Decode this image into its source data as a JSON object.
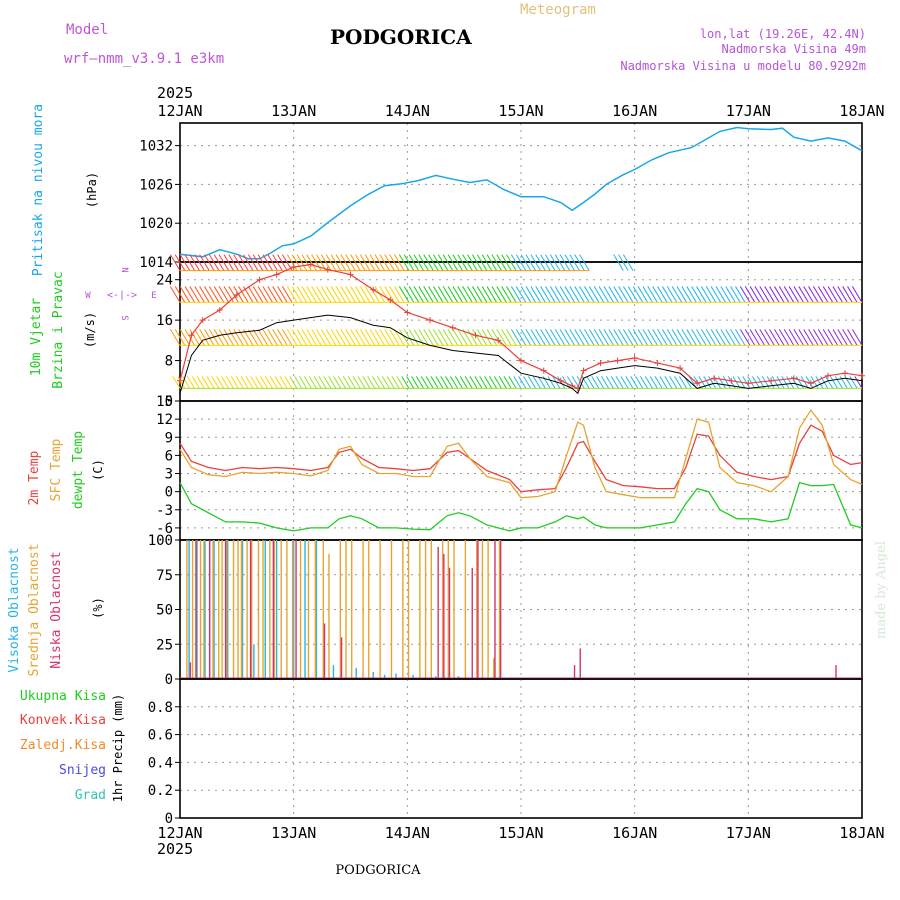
{
  "colors": {
    "model": "#bf55d6",
    "title": "#000000",
    "meteogram": "#e5c07a",
    "info": "#b455d6",
    "pressure": "#1aa7e8",
    "wind_label": "#1fcc1f",
    "compass": "#b455d6",
    "temp2m": "#e8413c",
    "sfc": "#e6a532",
    "dewpt": "#1fcc1f",
    "cloud_high": "#27b5e6",
    "cloud_mid": "#e6a532",
    "cloud_low": "#d6336e",
    "precip_total": "#1fcc1f",
    "precip_conv": "#e8413c",
    "precip_frz": "#f08c2a",
    "precip_snow": "#4b4bd6",
    "precip_hail": "#2ec4b6",
    "watermark": "#d7e8d7",
    "speed": "#000000",
    "gust": "#e8413c"
  },
  "header": {
    "model_label": "Model",
    "model_name": "wrf—nmm_v3.9.1  e3km",
    "title": "PODGORICA",
    "meteogram_label": "Meteogram",
    "coords": "lon,lat (19.26E, 42.4N)",
    "altitude": "Nadmorska Visina 49m",
    "model_altitude": "Nadmorska Visina u modelu 80.9292m"
  },
  "time_axis": {
    "year": "2025",
    "labels": [
      "12JAN",
      "13JAN",
      "14JAN",
      "15JAN",
      "16JAN",
      "17JAN",
      "18JAN"
    ],
    "days": [
      0,
      1,
      2,
      3,
      4,
      5,
      6
    ]
  },
  "footer": {
    "station": "PODGORICA"
  },
  "watermark": "made by Angel",
  "chart_data": [
    {
      "type": "line",
      "id": "pressure",
      "ylabel": "(hPa)",
      "side_label": "Pritisak na nivou mora",
      "ylim": [
        1014,
        1035.5
      ],
      "yticks": [
        1014,
        1020,
        1026,
        1032
      ],
      "x": [
        0,
        0.2,
        0.35,
        0.5,
        0.6,
        0.7,
        0.8,
        0.9,
        1.0,
        1.15,
        1.3,
        1.5,
        1.65,
        1.8,
        1.95,
        2.1,
        2.25,
        2.4,
        2.55,
        2.7,
        2.85,
        3.0,
        3.2,
        3.35,
        3.45,
        3.55,
        3.65,
        3.75,
        3.9,
        4.0,
        4.15,
        4.3,
        4.5,
        4.6,
        4.75,
        4.9,
        5.0,
        5.2,
        5.3,
        5.4,
        5.55,
        5.7,
        5.85,
        6.0
      ],
      "series": [
        {
          "name": "pressure",
          "values": [
            1015.2,
            1014.8,
            1015.9,
            1015.2,
            1014.5,
            1014.5,
            1015.4,
            1016.5,
            1016.8,
            1018.0,
            1020.1,
            1022.7,
            1024.4,
            1025.8,
            1026.1,
            1026.6,
            1027.4,
            1026.8,
            1026.3,
            1026.7,
            1025.2,
            1024.1,
            1024.1,
            1023.2,
            1022.0,
            1023.2,
            1024.5,
            1026.0,
            1027.5,
            1028.3,
            1029.8,
            1030.9,
            1031.7,
            1032.7,
            1034.2,
            1034.8,
            1034.6,
            1034.5,
            1034.7,
            1033.3,
            1032.7,
            1033.2,
            1032.7,
            1031.2
          ]
        }
      ]
    },
    {
      "type": "line",
      "id": "wind",
      "ylabel": "(m/s)",
      "side_label_1": "10m Vjetar",
      "side_label_2": "Brzina i Pravac",
      "compass": {
        "n": "N",
        "s": "S",
        "e": "E",
        "w": "W"
      },
      "ylim": [
        0,
        27.5
      ],
      "yticks": [
        0,
        8,
        16,
        24
      ],
      "x": [
        0,
        0.1,
        0.2,
        0.35,
        0.5,
        0.7,
        0.85,
        1.0,
        1.15,
        1.3,
        1.5,
        1.7,
        1.85,
        2.0,
        2.2,
        2.4,
        2.6,
        2.8,
        3.0,
        3.2,
        3.35,
        3.45,
        3.5,
        3.55,
        3.7,
        3.85,
        4.0,
        4.2,
        4.4,
        4.55,
        4.7,
        4.85,
        5.0,
        5.2,
        5.4,
        5.55,
        5.7,
        5.85,
        6.0
      ],
      "series": [
        {
          "name": "speed",
          "values": [
            1.5,
            9,
            12,
            13,
            13.5,
            14,
            15.5,
            16,
            16.5,
            17,
            16.5,
            15,
            14.5,
            12.5,
            11,
            10,
            9.5,
            9,
            5.5,
            4.5,
            3.5,
            2.5,
            1.5,
            4.5,
            6,
            6.5,
            7,
            6.5,
            5.5,
            2.5,
            3.5,
            3,
            2.5,
            3,
            3.5,
            2.5,
            4,
            4.5,
            4
          ]
        },
        {
          "name": "gust",
          "values": [
            4,
            13,
            16,
            18,
            21,
            24,
            25,
            26.5,
            27,
            26,
            25,
            22,
            20,
            17.5,
            16,
            14.5,
            13,
            12,
            8,
            6,
            4,
            3,
            2.5,
            6,
            7.5,
            8,
            8.5,
            7.5,
            6.5,
            3.5,
            4.5,
            4,
            3.5,
            4,
            4.5,
            3.5,
            5,
            5.5,
            5
          ]
        }
      ]
    },
    {
      "type": "line",
      "id": "temperature",
      "ylabel": "(C)",
      "side_label_1": "2m Temp",
      "side_label_2": "SFC Temp",
      "side_label_3": "dewpt Temp",
      "ylim": [
        -8,
        15
      ],
      "yticks": [
        -6,
        -3,
        0,
        3,
        6,
        9,
        12,
        15
      ],
      "x": [
        0,
        0.1,
        0.25,
        0.4,
        0.55,
        0.7,
        0.85,
        1.0,
        1.15,
        1.3,
        1.4,
        1.5,
        1.6,
        1.75,
        1.9,
        2.05,
        2.2,
        2.35,
        2.45,
        2.55,
        2.7,
        2.9,
        3.0,
        3.15,
        3.3,
        3.4,
        3.5,
        3.55,
        3.65,
        3.75,
        3.9,
        4.05,
        4.2,
        4.35,
        4.45,
        4.55,
        4.65,
        4.75,
        4.9,
        5.05,
        5.2,
        5.35,
        5.45,
        5.55,
        5.65,
        5.75,
        5.9,
        6.0
      ],
      "series": [
        {
          "name": "2m Temp",
          "values": [
            8,
            5,
            4,
            3.5,
            4,
            3.8,
            4,
            3.8,
            3.5,
            4,
            6.5,
            7,
            5.5,
            4,
            3.8,
            3.5,
            3.8,
            6.5,
            6.8,
            5.5,
            3.5,
            2,
            0,
            0.3,
            0.5,
            4,
            8,
            8.3,
            5,
            2,
            1,
            0.8,
            0.5,
            0.5,
            4,
            9.5,
            9.2,
            6,
            3.2,
            2.5,
            2,
            2.5,
            8,
            11,
            10,
            6,
            4.5,
            4.8
          ]
        },
        {
          "name": "SFC Temp",
          "values": [
            7,
            4,
            2.8,
            2.5,
            3.2,
            3,
            3.2,
            3,
            2.6,
            3.5,
            7,
            7.5,
            4.5,
            3,
            3,
            2.5,
            2.5,
            7.5,
            8,
            5.5,
            2.5,
            1.5,
            -1,
            -0.8,
            0,
            6,
            11.5,
            11,
            4,
            0,
            -0.5,
            -1,
            -1,
            -1,
            5.5,
            12,
            11.5,
            4,
            1.5,
            1,
            0,
            2.5,
            10.5,
            13.5,
            11,
            4.5,
            2,
            1.2
          ]
        },
        {
          "name": "dewpt Temp",
          "values": [
            1.5,
            -2,
            -3.5,
            -5,
            -5,
            -5.2,
            -6,
            -6.5,
            -6,
            -6,
            -4.5,
            -4,
            -4.5,
            -6,
            -6,
            -6.2,
            -6.3,
            -4,
            -3.5,
            -4,
            -5.5,
            -6.5,
            -6,
            -6,
            -5,
            -4,
            -4.5,
            -4.2,
            -5.5,
            -6,
            -6,
            -6,
            -5.5,
            -5,
            -2,
            0.5,
            0,
            -3,
            -4.5,
            -4.5,
            -5,
            -4.5,
            1.5,
            1,
            1,
            1.2,
            -5.5,
            -6
          ]
        }
      ]
    },
    {
      "type": "bar",
      "id": "clouds",
      "ylabel": "(%)",
      "side_label_1": "Visoka Oblacnost",
      "side_label_2": "Srednja Oblacnost",
      "side_label_3": "Niska Oblacnost",
      "ylim": [
        0,
        100
      ],
      "yticks": [
        0,
        25,
        50,
        75,
        100
      ],
      "series": [
        {
          "name": "Visoka Oblacnost",
          "x": [
            0.08,
            0.15,
            0.22,
            0.3,
            0.42,
            0.55,
            0.65,
            0.75,
            0.85,
            1.0,
            1.1,
            1.2,
            1.35,
            1.55,
            1.7,
            1.8,
            1.9,
            2.05,
            2.25,
            2.45
          ],
          "values": [
            100,
            100,
            100,
            100,
            100,
            100,
            25,
            100,
            100,
            100,
            100,
            100,
            10,
            8,
            5,
            3,
            4,
            3,
            2,
            2
          ]
        },
        {
          "name": "Srednja Oblacnost",
          "x": [
            0.05,
            0.1,
            0.13,
            0.17,
            0.2,
            0.25,
            0.28,
            0.33,
            0.36,
            0.4,
            0.46,
            0.5,
            0.53,
            0.58,
            0.62,
            0.68,
            0.72,
            0.78,
            0.82,
            0.88,
            0.93,
            0.98,
            1.05,
            1.12,
            1.18,
            1.25,
            1.3,
            1.4,
            1.45,
            1.5,
            1.6,
            1.65,
            1.75,
            1.85,
            1.95,
            2.0,
            2.1,
            2.15,
            2.2,
            2.3,
            2.35,
            2.4,
            2.5,
            2.6,
            2.65,
            2.7,
            2.75,
            2.8
          ],
          "values": [
            100,
            100,
            100,
            100,
            100,
            100,
            100,
            100,
            100,
            100,
            100,
            100,
            100,
            100,
            100,
            100,
            100,
            100,
            100,
            100,
            100,
            100,
            100,
            100,
            100,
            100,
            90,
            100,
            100,
            100,
            100,
            100,
            100,
            100,
            100,
            100,
            100,
            100,
            100,
            100,
            100,
            100,
            100,
            100,
            100,
            100,
            15,
            100
          ]
        },
        {
          "name": "Niska Oblacnost",
          "x": [
            0.07,
            0.12,
            0.24,
            0.38,
            0.6,
            0.8,
            1.0,
            1.25,
            1.4,
            2.25,
            2.3,
            2.35,
            2.55,
            2.6,
            2.75,
            2.8,
            3.45,
            3.5,
            5.75
          ],
          "values": [
            12,
            100,
            100,
            100,
            100,
            100,
            100,
            40,
            30,
            95,
            90,
            80,
            80,
            100,
            100,
            100,
            10,
            22,
            10
          ]
        }
      ]
    },
    {
      "type": "bar",
      "id": "precip",
      "ylabel": "1hr Precip (mm)",
      "legend": [
        "Ukupna Kisa",
        "Konvek.Kisa",
        "Zaledj.Kisa",
        "Snijeg",
        "Grad"
      ],
      "ylim": [
        0,
        1
      ],
      "yticks": [
        0,
        0.2,
        0.4,
        0.6,
        0.8
      ],
      "series": []
    }
  ]
}
